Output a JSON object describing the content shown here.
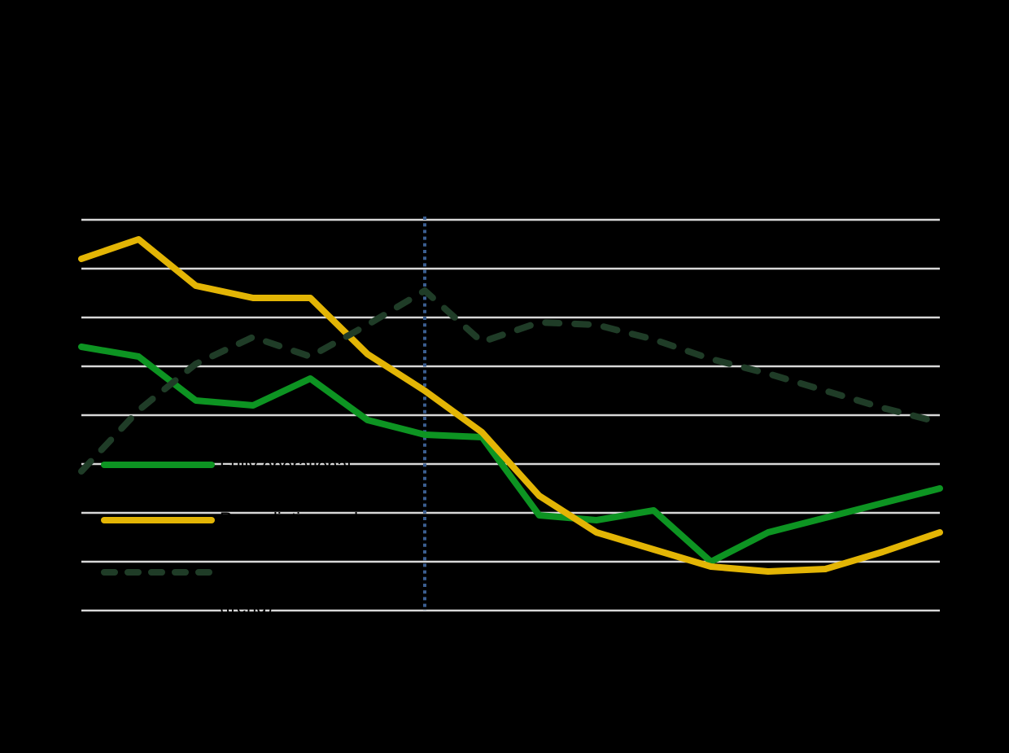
{
  "canvas": {
    "background": "#000000"
  },
  "notes": "Chart image has a black background; title, y-axis tick labels and x-axis labels are drawn in black and are not legible. Legend labels are black and only partially visible where they overlap the white gridlines.",
  "chart_data": {
    "type": "line",
    "x_index": [
      0,
      1,
      2,
      3,
      4,
      5,
      6,
      7,
      8,
      9,
      10,
      11,
      12,
      13,
      14,
      15
    ],
    "x_axis": {
      "points": 16,
      "labels_visible": false
    },
    "y_axis": {
      "gridline_values": [
        0,
        10,
        20,
        30,
        40,
        50,
        60,
        70,
        80
      ],
      "range": [
        0,
        80
      ],
      "labels_visible": false,
      "grid_on": true
    },
    "series": [
      {
        "name": "fully-operational",
        "label": "Fully operational",
        "color": "#0D9422",
        "line_style": "solid",
        "values": [
          54,
          52,
          43,
          42,
          47.5,
          39,
          36,
          35.5,
          19.5,
          18.5,
          20.5,
          10,
          16,
          19,
          22,
          25
        ]
      },
      {
        "name": "remediation-works",
        "label": "Remediation works",
        "color": "#E3B505",
        "line_style": "solid",
        "values": [
          72,
          76,
          66.5,
          64,
          64,
          52.5,
          45,
          36.5,
          23.5,
          16,
          12.5,
          9,
          8,
          8.5,
          12,
          16
        ]
      },
      {
        "name": "under-construction",
        "label": "Under construction",
        "label_line2": "(trend)",
        "color": "#1F3C27",
        "line_style": "dashed",
        "values": [
          28.5,
          41,
          50.5,
          56,
          52,
          58.5,
          65.5,
          55,
          59,
          58.5,
          55.5,
          51.5,
          48.5,
          45,
          41.5,
          38.5
        ]
      }
    ],
    "event_line": {
      "x_index": 6,
      "style": "dotted",
      "color": "#3B5E90"
    },
    "legend_position": "center-left"
  },
  "grid": {
    "color": "#D8D8D8"
  },
  "legend": {
    "text_color": "#000000",
    "items": [
      {
        "label": "Fully operational",
        "swatch": "solid-green"
      },
      {
        "label": "Remediation works",
        "swatch": "solid-gold"
      },
      {
        "label": "Under construction",
        "label_line2": "(trend)",
        "swatch": "dashed-dark-green"
      }
    ]
  }
}
